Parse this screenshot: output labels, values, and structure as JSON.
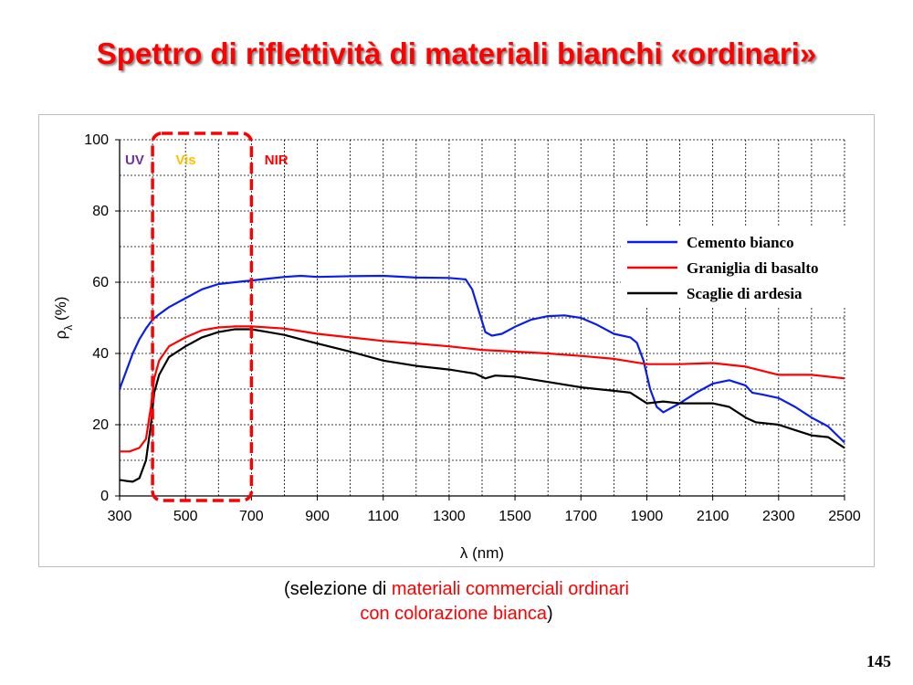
{
  "slide": {
    "title": "Spettro di riflettività di materiali bianchi «ordinari»",
    "caption_prefix": "(selezione di ",
    "caption_red_1": "materiali commerciali ordinari",
    "caption_red_2": "con colorazione bianca",
    "caption_suffix": ")",
    "page_number": "145"
  },
  "chart_data": {
    "type": "line",
    "title": "",
    "xlabel": "λ (nm)",
    "ylabel_symbol": "ρ",
    "ylabel_sub": "λ",
    "ylabel_unit": " (%)",
    "xlim": [
      300,
      2500
    ],
    "ylim": [
      0,
      100
    ],
    "x_ticks": [
      "300",
      "500",
      "700",
      "900",
      "1100",
      "1300",
      "1500",
      "1700",
      "1900",
      "2100",
      "2300",
      "2500"
    ],
    "y_ticks": [
      "0",
      "20",
      "40",
      "60",
      "80",
      "100"
    ],
    "grid": true,
    "legend_position": "right",
    "regions": [
      {
        "label": "UV",
        "color": "#7030a0"
      },
      {
        "label": "Vis",
        "color": "#ffc000"
      },
      {
        "label": "NIR",
        "color": "#ff0000"
      }
    ],
    "highlight_box": {
      "x_range": [
        400,
        700
      ],
      "color": "#ff0000"
    },
    "series": [
      {
        "name": "Cemento bianco",
        "color": "#0a1ee6",
        "points": [
          [
            300,
            30
          ],
          [
            320,
            35
          ],
          [
            340,
            40
          ],
          [
            360,
            44
          ],
          [
            380,
            47
          ],
          [
            400,
            49.5
          ],
          [
            420,
            51
          ],
          [
            450,
            53
          ],
          [
            500,
            55.5
          ],
          [
            550,
            58
          ],
          [
            600,
            59.5
          ],
          [
            650,
            60
          ],
          [
            700,
            60.5
          ],
          [
            750,
            61
          ],
          [
            800,
            61.5
          ],
          [
            850,
            61.8
          ],
          [
            900,
            61.5
          ],
          [
            1000,
            61.7
          ],
          [
            1100,
            61.8
          ],
          [
            1200,
            61.3
          ],
          [
            1300,
            61.2
          ],
          [
            1350,
            60.8
          ],
          [
            1370,
            58
          ],
          [
            1390,
            52
          ],
          [
            1410,
            46
          ],
          [
            1430,
            45
          ],
          [
            1460,
            45.5
          ],
          [
            1500,
            47.5
          ],
          [
            1550,
            49.5
          ],
          [
            1600,
            50.5
          ],
          [
            1650,
            50.7
          ],
          [
            1700,
            50
          ],
          [
            1750,
            48
          ],
          [
            1800,
            45.5
          ],
          [
            1850,
            44.5
          ],
          [
            1870,
            43
          ],
          [
            1890,
            38
          ],
          [
            1910,
            30
          ],
          [
            1930,
            25
          ],
          [
            1950,
            23.5
          ],
          [
            1970,
            24.5
          ],
          [
            2000,
            26
          ],
          [
            2050,
            29
          ],
          [
            2100,
            31.5
          ],
          [
            2150,
            32.5
          ],
          [
            2200,
            31
          ],
          [
            2220,
            29
          ],
          [
            2250,
            28.5
          ],
          [
            2300,
            27.5
          ],
          [
            2350,
            25
          ],
          [
            2400,
            22
          ],
          [
            2450,
            19.5
          ],
          [
            2500,
            15
          ]
        ]
      },
      {
        "name": "Graniglia di basalto",
        "color": "#ff0000",
        "points": [
          [
            300,
            12.5
          ],
          [
            330,
            12.5
          ],
          [
            360,
            13.5
          ],
          [
            380,
            16
          ],
          [
            395,
            25
          ],
          [
            405,
            33
          ],
          [
            420,
            38
          ],
          [
            450,
            42
          ],
          [
            500,
            44.5
          ],
          [
            550,
            46.5
          ],
          [
            600,
            47.3
          ],
          [
            650,
            47.6
          ],
          [
            700,
            47.6
          ],
          [
            800,
            47
          ],
          [
            900,
            45.5
          ],
          [
            1000,
            44.5
          ],
          [
            1100,
            43.5
          ],
          [
            1200,
            42.8
          ],
          [
            1300,
            42
          ],
          [
            1400,
            41
          ],
          [
            1500,
            40.5
          ],
          [
            1600,
            40
          ],
          [
            1700,
            39.3
          ],
          [
            1800,
            38.5
          ],
          [
            1900,
            37
          ],
          [
            2000,
            37
          ],
          [
            2100,
            37.3
          ],
          [
            2200,
            36.3
          ],
          [
            2300,
            34
          ],
          [
            2400,
            34
          ],
          [
            2500,
            33
          ]
        ]
      },
      {
        "name": "Scaglie di ardesia",
        "color": "#000000",
        "points": [
          [
            300,
            4.5
          ],
          [
            320,
            4.2
          ],
          [
            340,
            4
          ],
          [
            360,
            5
          ],
          [
            380,
            10
          ],
          [
            395,
            20
          ],
          [
            405,
            29
          ],
          [
            420,
            34
          ],
          [
            450,
            39
          ],
          [
            500,
            42
          ],
          [
            550,
            44.5
          ],
          [
            600,
            46
          ],
          [
            650,
            46.8
          ],
          [
            700,
            46.8
          ],
          [
            750,
            46
          ],
          [
            800,
            45.2
          ],
          [
            850,
            44
          ],
          [
            900,
            42.8
          ],
          [
            1000,
            40.5
          ],
          [
            1100,
            38
          ],
          [
            1200,
            36.5
          ],
          [
            1300,
            35.5
          ],
          [
            1380,
            34.3
          ],
          [
            1410,
            33
          ],
          [
            1440,
            33.8
          ],
          [
            1500,
            33.5
          ],
          [
            1600,
            32
          ],
          [
            1700,
            30.5
          ],
          [
            1800,
            29.5
          ],
          [
            1850,
            29
          ],
          [
            1900,
            26
          ],
          [
            1950,
            26.5
          ],
          [
            2000,
            26
          ],
          [
            2100,
            26
          ],
          [
            2150,
            25
          ],
          [
            2200,
            22
          ],
          [
            2230,
            20.7
          ],
          [
            2300,
            20
          ],
          [
            2350,
            18.5
          ],
          [
            2400,
            17
          ],
          [
            2450,
            16.5
          ],
          [
            2500,
            13.5
          ]
        ]
      }
    ]
  }
}
